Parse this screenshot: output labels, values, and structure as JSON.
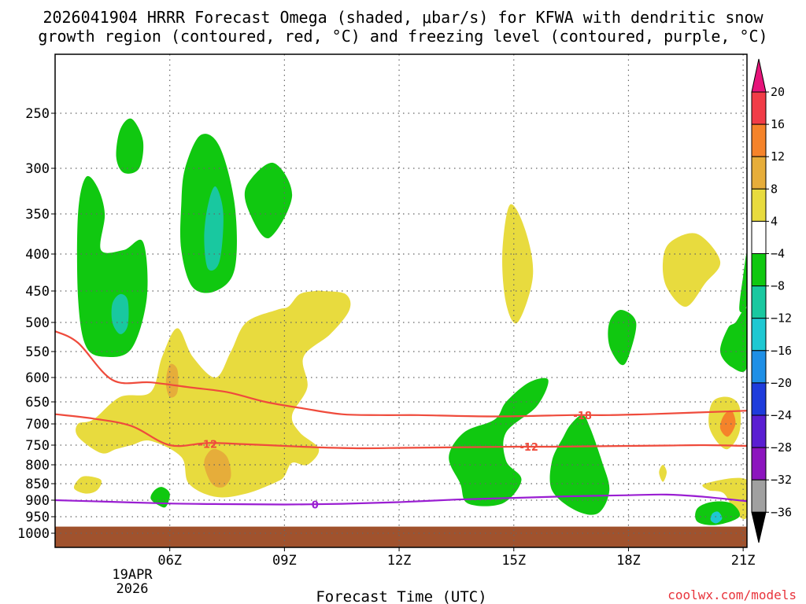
{
  "chart_data": {
    "type": "contour",
    "title_line1": "2026041904 HRRR Forecast Omega (shaded, μbar/s) for KFWA with dendritic snow",
    "title_line2": "growth region (contoured, red, °C) and freezing level (contoured, purple, °C)",
    "xlabel": "Forecast Time (UTC)",
    "credit": "coolwx.com/models",
    "x_ticks": [
      "06Z",
      "09Z",
      "12Z",
      "15Z",
      "18Z",
      "21Z"
    ],
    "x_date_line1": "19APR",
    "x_date_line2": "2026",
    "y_ticks": [
      "250",
      "300",
      "350",
      "400",
      "450",
      "500",
      "550",
      "600",
      "650",
      "700",
      "750",
      "800",
      "850",
      "900",
      "950",
      "1000"
    ],
    "y_values": [
      250,
      300,
      350,
      400,
      450,
      500,
      550,
      600,
      650,
      700,
      750,
      800,
      850,
      900,
      950,
      1000
    ],
    "xlim_hours": [
      3.0,
      21.1
    ],
    "colorbar": {
      "labels": [
        "20",
        "16",
        "12",
        "8",
        "4",
        "−4",
        "−8",
        "−12",
        "−16",
        "−20",
        "−24",
        "−28",
        "−32",
        "−36"
      ],
      "colors": [
        "#f13c47",
        "#f5832a",
        "#e6ad3a",
        "#e8db3e",
        "#ffffff",
        "#10c810",
        "#19c8a0",
        "#1ec8d2",
        "#1e8fe6",
        "#1e3cdc",
        "#5a1ed2",
        "#8c14be",
        "#a0a0a0"
      ],
      "top_color": "#e6147a",
      "bottom_color": "#000000"
    },
    "contour_labels": {
      "dgz_minus18": "-18",
      "dgz_minus12": "-12",
      "dgz_minus12_b": "-12",
      "freezing": "0"
    },
    "series": [
      {
        "name": "dgz_-18C",
        "color": "#ef4b3c",
        "points": [
          [
            3.0,
            515
          ],
          [
            3.6,
            535
          ],
          [
            4.5,
            605
          ],
          [
            5.5,
            610
          ],
          [
            6.5,
            620
          ],
          [
            7.5,
            630
          ],
          [
            8.5,
            650
          ],
          [
            9.5,
            665
          ],
          [
            10.5,
            678
          ],
          [
            11.5,
            680
          ],
          [
            12.5,
            680
          ],
          [
            13.5,
            682
          ],
          [
            14.5,
            683
          ],
          [
            15.5,
            682
          ],
          [
            16.5,
            680
          ],
          [
            17.5,
            680
          ],
          [
            18.5,
            678
          ],
          [
            19.5,
            675
          ],
          [
            20.5,
            672
          ],
          [
            21.1,
            670
          ]
        ]
      },
      {
        "name": "dgz_-12C",
        "color": "#ef4b3c",
        "points": [
          [
            3.0,
            678
          ],
          [
            4.0,
            688
          ],
          [
            5.0,
            705
          ],
          [
            6.0,
            750
          ],
          [
            7.0,
            745
          ],
          [
            8.0,
            748
          ],
          [
            9.0,
            752
          ],
          [
            10.0,
            756
          ],
          [
            11.0,
            758
          ],
          [
            12.0,
            757
          ],
          [
            13.0,
            756
          ],
          [
            14.0,
            755
          ],
          [
            15.0,
            754
          ],
          [
            16.0,
            754
          ],
          [
            17.0,
            753
          ],
          [
            18.0,
            752
          ],
          [
            19.0,
            751
          ],
          [
            20.0,
            750
          ],
          [
            21.1,
            752
          ]
        ]
      },
      {
        "name": "freezing_level_0C",
        "color": "#9a1ed2",
        "points": [
          [
            3.0,
            900
          ],
          [
            4.5,
            905
          ],
          [
            6.0,
            910
          ],
          [
            7.5,
            912
          ],
          [
            9.0,
            913
          ],
          [
            10.5,
            911
          ],
          [
            12.0,
            906
          ],
          [
            13.5,
            898
          ],
          [
            15.0,
            893
          ],
          [
            16.5,
            888
          ],
          [
            18.0,
            885
          ],
          [
            19.0,
            883
          ],
          [
            20.0,
            890
          ],
          [
            21.1,
            903
          ]
        ]
      }
    ],
    "omega_regions": [
      {
        "value_color": "#10c810",
        "label": "-4 to -8",
        "points": [
          [
            3.8,
            310
          ],
          [
            4.1,
            320
          ],
          [
            4.3,
            350
          ],
          [
            4.2,
            395
          ],
          [
            4.8,
            395
          ],
          [
            5.3,
            385
          ],
          [
            5.4,
            460
          ],
          [
            5.0,
            545
          ],
          [
            4.3,
            560
          ],
          [
            3.8,
            540
          ],
          [
            3.6,
            460
          ],
          [
            3.6,
            350
          ]
        ]
      },
      {
        "value_color": "#19c8a0",
        "label": "-8 to -12",
        "points": [
          [
            4.7,
            455
          ],
          [
            4.9,
            465
          ],
          [
            4.9,
            505
          ],
          [
            4.7,
            520
          ],
          [
            4.5,
            500
          ],
          [
            4.5,
            470
          ]
        ]
      },
      {
        "value_color": "#10c810",
        "label": "-4 to -8",
        "points": [
          [
            4.7,
            265
          ],
          [
            5.0,
            255
          ],
          [
            5.3,
            275
          ],
          [
            5.2,
            300
          ],
          [
            4.8,
            305
          ],
          [
            4.6,
            290
          ]
        ]
      },
      {
        "value_color": "#10c810",
        "label": "-4 to -8",
        "points": [
          [
            6.4,
            300
          ],
          [
            6.8,
            270
          ],
          [
            7.3,
            280
          ],
          [
            7.7,
            340
          ],
          [
            7.7,
            420
          ],
          [
            7.2,
            450
          ],
          [
            6.6,
            445
          ],
          [
            6.3,
            395
          ],
          [
            6.3,
            340
          ]
        ]
      },
      {
        "value_color": "#19c8a0",
        "label": "-8 to -12",
        "points": [
          [
            7.0,
            340
          ],
          [
            7.2,
            320
          ],
          [
            7.4,
            350
          ],
          [
            7.3,
            410
          ],
          [
            7.0,
            420
          ],
          [
            6.9,
            380
          ]
        ]
      },
      {
        "value_color": "#10c810",
        "label": "-4 to -8",
        "points": [
          [
            8.0,
            320
          ],
          [
            8.7,
            295
          ],
          [
            9.2,
            330
          ],
          [
            8.6,
            380
          ],
          [
            8.1,
            350
          ]
        ]
      },
      {
        "value_color": "#e8db3e",
        "label": "4 to 8",
        "points": [
          [
            3.6,
            700
          ],
          [
            4.0,
            690
          ],
          [
            4.7,
            640
          ],
          [
            5.5,
            630
          ],
          [
            5.8,
            560
          ],
          [
            6.2,
            510
          ],
          [
            6.6,
            560
          ],
          [
            7.2,
            600
          ],
          [
            7.6,
            550
          ],
          [
            8.0,
            500
          ],
          [
            8.8,
            480
          ],
          [
            9.1,
            475
          ],
          [
            9.4,
            455
          ],
          [
            9.8,
            450
          ],
          [
            10.0,
            450
          ],
          [
            10.6,
            455
          ],
          [
            10.7,
            480
          ],
          [
            10.2,
            520
          ],
          [
            9.5,
            560
          ],
          [
            9.6,
            620
          ],
          [
            9.2,
            680
          ],
          [
            9.4,
            720
          ],
          [
            9.9,
            760
          ],
          [
            9.6,
            800
          ],
          [
            9.2,
            795
          ],
          [
            9.0,
            830
          ],
          [
            8.8,
            845
          ],
          [
            8.0,
            880
          ],
          [
            7.2,
            890
          ],
          [
            6.5,
            850
          ],
          [
            6.3,
            780
          ],
          [
            5.5,
            740
          ],
          [
            5.0,
            750
          ],
          [
            4.6,
            760
          ],
          [
            4.2,
            770
          ],
          [
            3.6,
            730
          ]
        ]
      },
      {
        "value_color": "#e6ad3a",
        "label": "8 to 12",
        "points": [
          [
            7.2,
            760
          ],
          [
            7.5,
            780
          ],
          [
            7.6,
            830
          ],
          [
            7.4,
            860
          ],
          [
            7.1,
            850
          ],
          [
            6.9,
            800
          ],
          [
            7.0,
            770
          ]
        ]
      },
      {
        "value_color": "#e6ad3a",
        "label": "8 to 12",
        "points": [
          [
            6.0,
            575
          ],
          [
            6.2,
            585
          ],
          [
            6.2,
            630
          ],
          [
            6.0,
            640
          ],
          [
            5.9,
            610
          ]
        ]
      },
      {
        "value_color": "#e8db3e",
        "label": "4 to 8",
        "points": [
          [
            3.6,
            840
          ],
          [
            3.8,
            830
          ],
          [
            4.2,
            840
          ],
          [
            4.1,
            870
          ],
          [
            3.8,
            880
          ],
          [
            3.5,
            865
          ]
        ]
      },
      {
        "value_color": "#10c810",
        "label": "-4 to -8",
        "points": [
          [
            5.6,
            870
          ],
          [
            5.8,
            860
          ],
          [
            6.0,
            880
          ],
          [
            5.9,
            920
          ],
          [
            5.7,
            915
          ],
          [
            5.5,
            895
          ]
        ]
      },
      {
        "value_color": "#e8db3e",
        "label": "4 to 8",
        "points": [
          [
            14.9,
            340
          ],
          [
            15.3,
            370
          ],
          [
            15.5,
            430
          ],
          [
            15.1,
            500
          ],
          [
            14.8,
            470
          ],
          [
            14.7,
            400
          ]
        ]
      },
      {
        "value_color": "#10c810",
        "label": "-4 to -8",
        "points": [
          [
            14.5,
            690
          ],
          [
            14.8,
            650
          ],
          [
            15.4,
            610
          ],
          [
            15.9,
            605
          ],
          [
            15.6,
            660
          ],
          [
            14.8,
            720
          ],
          [
            14.8,
            790
          ],
          [
            15.2,
            840
          ],
          [
            14.7,
            910
          ],
          [
            13.8,
            910
          ],
          [
            13.6,
            850
          ],
          [
            13.3,
            780
          ],
          [
            13.7,
            720
          ]
        ]
      },
      {
        "value_color": "#10c810",
        "label": "-4 to -8",
        "points": [
          [
            16.5,
            700
          ],
          [
            16.8,
            680
          ],
          [
            17.0,
            710
          ],
          [
            17.3,
            790
          ],
          [
            17.5,
            870
          ],
          [
            17.2,
            940
          ],
          [
            16.6,
            930
          ],
          [
            16.0,
            870
          ],
          [
            16.0,
            790
          ],
          [
            16.3,
            730
          ]
        ]
      },
      {
        "value_color": "#10c810",
        "label": "-4 to -8",
        "points": [
          [
            17.8,
            480
          ],
          [
            18.2,
            500
          ],
          [
            18.0,
            560
          ],
          [
            17.8,
            575
          ],
          [
            17.5,
            540
          ],
          [
            17.5,
            500
          ]
        ]
      },
      {
        "value_color": "#e8db3e",
        "label": "4 to 8",
        "points": [
          [
            19.1,
            385
          ],
          [
            19.8,
            375
          ],
          [
            20.4,
            410
          ],
          [
            20.0,
            440
          ],
          [
            19.5,
            475
          ],
          [
            19.0,
            445
          ],
          [
            18.9,
            410
          ]
        ]
      },
      {
        "value_color": "#e8db3e",
        "label": "4 to 8",
        "points": [
          [
            20.2,
            650
          ],
          [
            20.6,
            640
          ],
          [
            20.9,
            660
          ],
          [
            20.9,
            720
          ],
          [
            20.6,
            760
          ],
          [
            20.3,
            740
          ],
          [
            20.1,
            700
          ]
        ]
      },
      {
        "value_color": "#f5832a",
        "label": "12 to 16",
        "points": [
          [
            20.5,
            680
          ],
          [
            20.7,
            670
          ],
          [
            20.8,
            700
          ],
          [
            20.6,
            730
          ],
          [
            20.4,
            710
          ]
        ]
      },
      {
        "value_color": "#10c810",
        "label": "-4 to -8",
        "points": [
          [
            20.8,
            500
          ],
          [
            21.1,
            480
          ],
          [
            21.1,
            580
          ],
          [
            20.7,
            580
          ],
          [
            20.4,
            550
          ],
          [
            20.6,
            510
          ]
        ]
      },
      {
        "value_color": "#10c810",
        "label": "-4 to -8",
        "points": [
          [
            21.0,
            430
          ],
          [
            21.1,
            400
          ],
          [
            21.1,
            470
          ],
          [
            20.9,
            480
          ]
        ]
      },
      {
        "value_color": "#e8db3e",
        "label": "4 to 8",
        "points": [
          [
            20.0,
            850
          ],
          [
            21.1,
            840
          ],
          [
            21.1,
            950
          ],
          [
            20.8,
            940
          ],
          [
            20.5,
            880
          ],
          [
            20.1,
            870
          ]
        ]
      },
      {
        "value_color": "#e8db3e",
        "label": "4 to 8",
        "points": [
          [
            18.9,
            800
          ],
          [
            19.0,
            820
          ],
          [
            18.9,
            845
          ],
          [
            18.8,
            820
          ]
        ]
      },
      {
        "value_color": "#10c810",
        "label": "-4 to -8",
        "points": [
          [
            19.8,
            925
          ],
          [
            20.2,
            905
          ],
          [
            20.7,
            910
          ],
          [
            20.9,
            950
          ],
          [
            20.3,
            975
          ],
          [
            19.8,
            965
          ]
        ]
      },
      {
        "value_color": "#1ec8d2",
        "label": "-12 to -16",
        "points": [
          [
            20.2,
            940
          ],
          [
            20.35,
            935
          ],
          [
            20.45,
            955
          ],
          [
            20.3,
            970
          ],
          [
            20.15,
            960
          ]
        ]
      }
    ],
    "surface_terrain": {
      "color": "#a0522d",
      "from_pressure": 980,
      "to_pressure": 1030
    }
  }
}
